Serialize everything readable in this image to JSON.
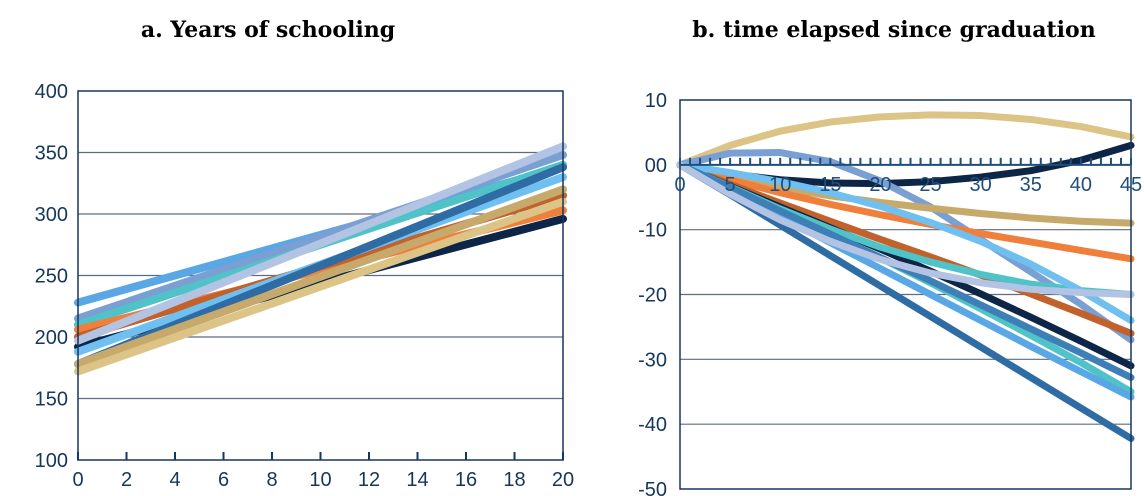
{
  "chart_data": [
    {
      "type": "line",
      "title": "a. Years of schooling",
      "xlabel": "",
      "ylabel": "",
      "xlim": [
        0,
        20
      ],
      "ylim": [
        100,
        400
      ],
      "x_ticks": [
        0,
        2,
        4,
        6,
        8,
        10,
        12,
        14,
        16,
        18,
        20
      ],
      "y_ticks": [
        100,
        150,
        200,
        250,
        300,
        350,
        400
      ],
      "y_tick_labels": [
        "100",
        "150",
        "200",
        "250",
        "300",
        "350",
        "400"
      ],
      "grid": true,
      "series": [
        {
          "color": "#5aa7e6",
          "x": [
            0,
            20
          ],
          "y": [
            228,
            338
          ]
        },
        {
          "color": "#7a9fd3",
          "x": [
            0,
            20
          ],
          "y": [
            215,
            348
          ]
        },
        {
          "color": "#4fc3c7",
          "x": [
            0,
            20
          ],
          "y": [
            210,
            340
          ]
        },
        {
          "color": "#f07f3c",
          "x": [
            0,
            20
          ],
          "y": [
            206,
            303
          ]
        },
        {
          "color": "#c2612b",
          "x": [
            0,
            20
          ],
          "y": [
            200,
            315
          ]
        },
        {
          "color": "#0d2547",
          "x": [
            0,
            20
          ],
          "y": [
            192,
            296
          ]
        },
        {
          "color": "#6fc0f0",
          "x": [
            0,
            20
          ],
          "y": [
            188,
            330
          ]
        },
        {
          "color": "#2e6ca3",
          "x": [
            0,
            20
          ],
          "y": [
            178,
            338
          ]
        },
        {
          "color": "#b3c3e3",
          "x": [
            0,
            20
          ],
          "y": [
            197,
            355
          ]
        },
        {
          "color": "#c7aa6b",
          "x": [
            0,
            20
          ],
          "y": [
            178,
            320
          ]
        },
        {
          "color": "#dcc487",
          "x": [
            0,
            20
          ],
          "y": [
            172,
            310
          ]
        }
      ]
    },
    {
      "type": "line",
      "title": "b. time elapsed since graduation",
      "xlabel": "",
      "ylabel": "",
      "xlim": [
        0,
        45
      ],
      "ylim": [
        -50,
        10
      ],
      "x_ticks": [
        0,
        5,
        10,
        15,
        20,
        25,
        30,
        35,
        40,
        45
      ],
      "y_ticks": [
        -50,
        -40,
        -30,
        -20,
        -10,
        0,
        10
      ],
      "y_tick_labels": [
        "-50",
        "-40",
        "-30",
        "-20",
        "-10",
        "00",
        "10"
      ],
      "grid": true,
      "series": [
        {
          "color": "#dcc487",
          "x": [
            0,
            5,
            10,
            15,
            20,
            25,
            30,
            35,
            40,
            45
          ],
          "y": [
            0,
            3,
            5.2,
            6.6,
            7.4,
            7.7,
            7.6,
            7,
            5.9,
            4.3
          ]
        },
        {
          "color": "#0d2547",
          "x": [
            0,
            5,
            10,
            15,
            20,
            25,
            30,
            35,
            40,
            45
          ],
          "y": [
            0,
            -1.4,
            -2.3,
            -2.8,
            -2.9,
            -2.6,
            -1.9,
            -0.9,
            0.7,
            3
          ]
        },
        {
          "color": "#7a9fd3",
          "x": [
            0,
            5,
            10,
            15,
            20,
            25,
            30,
            35,
            40,
            45
          ],
          "y": [
            0,
            1.8,
            1.9,
            0.5,
            -2.5,
            -6.5,
            -11.5,
            -16.5,
            -21.5,
            -27
          ]
        },
        {
          "color": "#c7aa6b",
          "x": [
            0,
            5,
            10,
            15,
            20,
            25,
            30,
            35,
            40,
            45
          ],
          "y": [
            0,
            -1.9,
            -3.5,
            -4.8,
            -5.8,
            -6.7,
            -7.5,
            -8.2,
            -8.7,
            -9
          ]
        },
        {
          "color": "#f07f3c",
          "x": [
            0,
            5,
            10,
            15,
            20,
            25,
            30,
            35,
            40,
            45
          ],
          "y": [
            0,
            -2.3,
            -4.3,
            -6.1,
            -7.7,
            -9.2,
            -10.6,
            -11.9,
            -13.2,
            -14.5
          ]
        },
        {
          "color": "#c2612b",
          "x": [
            0,
            5,
            10,
            15,
            20,
            25,
            30,
            35,
            40,
            45
          ],
          "y": [
            0,
            -3,
            -5.9,
            -8.7,
            -11.5,
            -14.2,
            -17,
            -19.9,
            -22.9,
            -26
          ]
        },
        {
          "color": "#0d2547",
          "x": [
            0,
            5,
            10,
            15,
            20,
            25,
            30,
            35,
            40,
            45
          ],
          "y": [
            0,
            -3.3,
            -6.5,
            -9.7,
            -13,
            -16.4,
            -19.9,
            -23.5,
            -27.2,
            -31
          ]
        },
        {
          "color": "#4fc3c7",
          "x": [
            0,
            5,
            10,
            15,
            20,
            25,
            30,
            35,
            40,
            45
          ],
          "y": [
            0,
            -3.4,
            -6.8,
            -9.9,
            -12.7,
            -15,
            -16.9,
            -18.4,
            -19.4,
            -20
          ]
        },
        {
          "color": "#4fc3c7",
          "x": [
            0,
            5,
            10,
            15,
            20,
            25,
            30,
            35,
            40,
            45
          ],
          "y": [
            0,
            -3.5,
            -7,
            -10.7,
            -14.4,
            -18.2,
            -22.2,
            -26.3,
            -30.5,
            -35
          ]
        },
        {
          "color": "#6fc0f0",
          "x": [
            0,
            5,
            10,
            15,
            20,
            25,
            30,
            35,
            40,
            45
          ],
          "y": [
            0,
            -1.2,
            -2.6,
            -4.3,
            -6.4,
            -8.9,
            -11.8,
            -15.3,
            -19.4,
            -24
          ]
        },
        {
          "color": "#5aa7e6",
          "x": [
            0,
            5,
            10,
            15,
            20,
            25,
            30,
            35,
            40,
            45
          ],
          "y": [
            0,
            -4,
            -8,
            -12,
            -16,
            -20,
            -24,
            -28,
            -31.9,
            -35.8
          ]
        },
        {
          "color": "#3f7fb8",
          "x": [
            0,
            5,
            10,
            15,
            20,
            25,
            30,
            35,
            40,
            45
          ],
          "y": [
            0,
            -3.5,
            -7.1,
            -10.7,
            -14.3,
            -17.9,
            -21.6,
            -25.3,
            -29,
            -32.8
          ]
        },
        {
          "color": "#2e6ca3",
          "x": [
            0,
            5,
            10,
            15,
            20,
            25,
            30,
            35,
            40,
            45
          ],
          "y": [
            0,
            -4.6,
            -9.3,
            -14,
            -18.7,
            -23.4,
            -28.1,
            -32.8,
            -37.5,
            -42.2
          ]
        },
        {
          "color": "#b3c3e3",
          "x": [
            0,
            5,
            10,
            15,
            20,
            25,
            30,
            35,
            40,
            45
          ],
          "y": [
            0,
            -4.5,
            -8.5,
            -11.8,
            -14.6,
            -16.7,
            -18.2,
            -19.2,
            -19.7,
            -20
          ]
        }
      ]
    }
  ]
}
